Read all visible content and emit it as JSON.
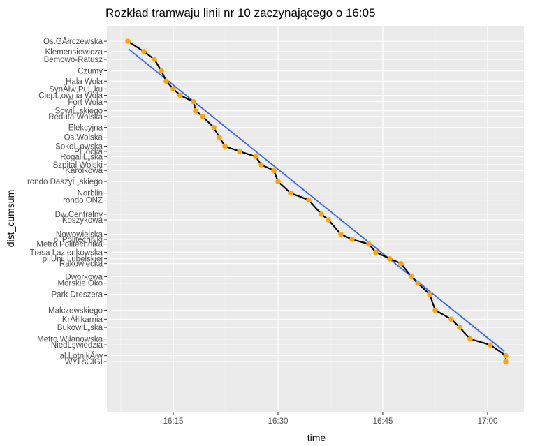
{
  "chart_data": {
    "type": "line",
    "title": "Rozkład tramwaju linii nr 10 zaczynającego o 16:05",
    "xlabel": "time",
    "ylabel": "dist_cumsum",
    "x_ticks": [
      {
        "minute": 15,
        "label": "16:15"
      },
      {
        "minute": 30,
        "label": "16:30"
      },
      {
        "minute": 45,
        "label": "16:45"
      },
      {
        "minute": 60,
        "label": "17:00"
      }
    ],
    "xlim": [
      5.5,
      65.2
    ],
    "ylim": [
      -0.6,
      14.4
    ],
    "y_reversed": true,
    "grid": true,
    "colors": {
      "panel_background": "#ebebeb",
      "gridline": "#ffffff",
      "points": "#ffa500",
      "schedule_line": "#000000",
      "trend_line": "#3366ff"
    },
    "stops": [
      {
        "name": "Os.GĂłrczewska",
        "dist": 0.0,
        "minute": 8.5
      },
      {
        "name": "Klemensiewicza",
        "dist": 0.4,
        "minute": 10.8
      },
      {
        "name": "Bemowo-Ratusz",
        "dist": 0.7,
        "minute": 12.3
      },
      {
        "name": "Czumy",
        "dist": 1.15,
        "minute": 13.3
      },
      {
        "name": "Hala Wola",
        "dist": 1.55,
        "minute": 14.0
      },
      {
        "name": "SynĂłw PuĹ‚ku",
        "dist": 1.85,
        "minute": 15.0
      },
      {
        "name": "CiepĹ‚ownia Wola",
        "dist": 2.1,
        "minute": 16.0
      },
      {
        "name": "Fort Wola",
        "dist": 2.35,
        "minute": 17.9
      },
      {
        "name": "SowiĹ„skiego",
        "dist": 2.7,
        "minute": 18.2
      },
      {
        "name": "Reduta Wolska",
        "dist": 2.92,
        "minute": 19.2
      },
      {
        "name": "Elekcyjna",
        "dist": 3.35,
        "minute": 20.8
      },
      {
        "name": "Os.Wolska",
        "dist": 3.73,
        "minute": 21.6
      },
      {
        "name": "SokoĹ‚owska",
        "dist": 4.08,
        "minute": 22.4
      },
      {
        "name": "PĹ‚ocka",
        "dist": 4.28,
        "minute": 24.5
      },
      {
        "name": "RogaliĹ„ska",
        "dist": 4.48,
        "minute": 26.8
      },
      {
        "name": "Szpital Wolski",
        "dist": 4.8,
        "minute": 27.6
      },
      {
        "name": "Karolkowa",
        "dist": 5.02,
        "minute": 29.4
      },
      {
        "name": "rondo DaszyĹ„skiego",
        "dist": 5.45,
        "minute": 30.0
      },
      {
        "name": "Norblin",
        "dist": 5.9,
        "minute": 31.8
      },
      {
        "name": "rondo ONZ",
        "dist": 6.17,
        "minute": 34.4
      },
      {
        "name": "Dw.Centralny",
        "dist": 6.72,
        "minute": 36.2
      },
      {
        "name": "Koszykowa",
        "dist": 6.94,
        "minute": 37.2
      },
      {
        "name": "Nowowiejska",
        "dist": 7.5,
        "minute": 39.0
      },
      {
        "name": "pl.Politechniki",
        "dist": 7.7,
        "minute": 40.6
      },
      {
        "name": "Metro Politechnika",
        "dist": 7.88,
        "minute": 43.0
      },
      {
        "name": "Trasa Lazienkowska",
        "dist": 8.2,
        "minute": 44.0
      },
      {
        "name": "pl.Unii Lubelskiej",
        "dist": 8.45,
        "minute": 46.0
      },
      {
        "name": "Rakowiecka",
        "dist": 8.64,
        "minute": 47.6
      },
      {
        "name": "Dworkowa",
        "dist": 9.15,
        "minute": 49.1
      },
      {
        "name": "Morskie Oko",
        "dist": 9.4,
        "minute": 50.0
      },
      {
        "name": "Park Dreszera",
        "dist": 9.83,
        "minute": 51.7
      },
      {
        "name": "Malczewskiego",
        "dist": 10.45,
        "minute": 52.5
      },
      {
        "name": "KrĂłlikarnia",
        "dist": 10.8,
        "minute": 54.8
      },
      {
        "name": "BukowiĹ„ska",
        "dist": 11.12,
        "minute": 56.0
      },
      {
        "name": "Metro Wilanowska",
        "dist": 11.57,
        "minute": 57.5
      },
      {
        "name": "NiedĹşwiedzia",
        "dist": 11.8,
        "minute": 60.4
      },
      {
        "name": "al.LotnikĂłw",
        "dist": 12.22,
        "minute": 62.6
      },
      {
        "name": "WYĹšCIGI",
        "dist": 12.45,
        "minute": 62.6
      }
    ],
    "trend": {
      "minute_start": 8.6,
      "minute_end": 62.4,
      "dist_start": 0.3,
      "dist_end": 12.05
    }
  }
}
